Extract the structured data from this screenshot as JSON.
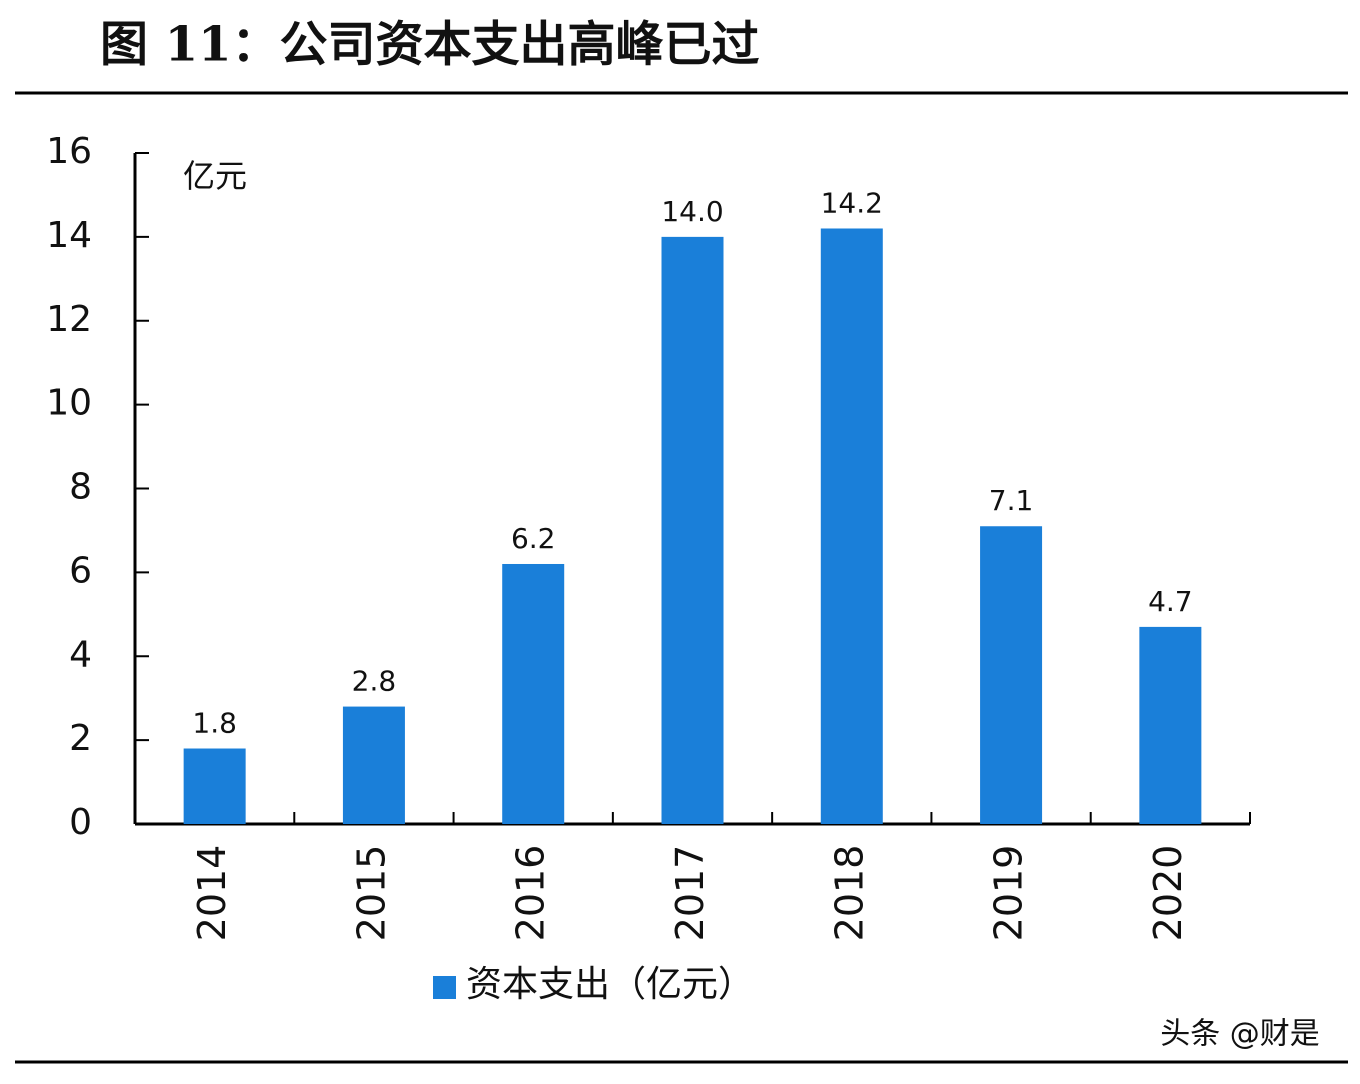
{
  "chart_data": {
    "type": "bar",
    "title": "图 11：公司资本支出高峰已过",
    "unit_label": "亿元",
    "categories": [
      "2014",
      "2015",
      "2016",
      "2017",
      "2018",
      "2019",
      "2020"
    ],
    "series": [
      {
        "name": "资本支出（亿元）",
        "color": "#1a7fd9",
        "values": [
          1.8,
          2.8,
          6.2,
          14.0,
          14.2,
          7.1,
          4.7
        ],
        "value_labels": [
          "1.8",
          "2.8",
          "6.2",
          "14.0",
          "14.2",
          "7.1",
          "4.7"
        ]
      }
    ],
    "ylim": [
      0,
      16
    ],
    "yticks": [
      0,
      2,
      4,
      6,
      8,
      10,
      12,
      14,
      16
    ],
    "grid": false
  },
  "watermark": "头条 @财是"
}
